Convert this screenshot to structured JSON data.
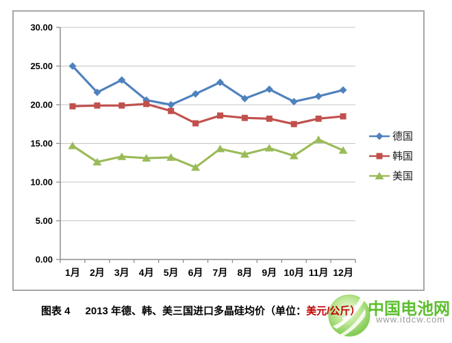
{
  "chart_data": {
    "type": "line",
    "title": "2013年德、韩、美三国进口多晶硅均价",
    "categories": [
      "1月",
      "2月",
      "3月",
      "4月",
      "5月",
      "6月",
      "7月",
      "8月",
      "9月",
      "10月",
      "11月",
      "12月"
    ],
    "series": [
      {
        "name": "德国",
        "marker": "diamond",
        "color": "#4F81BD",
        "values": [
          25.0,
          21.6,
          23.2,
          20.6,
          20.0,
          21.4,
          22.9,
          20.8,
          22.0,
          20.4,
          21.1,
          21.9
        ]
      },
      {
        "name": "韩国",
        "marker": "square",
        "color": "#C0504D",
        "values": [
          19.8,
          19.9,
          19.9,
          20.1,
          19.2,
          17.6,
          18.6,
          18.3,
          18.2,
          17.5,
          18.2,
          18.5
        ]
      },
      {
        "name": "美国",
        "marker": "triangle",
        "color": "#9BBB59",
        "values": [
          14.7,
          12.6,
          13.3,
          13.1,
          13.2,
          11.9,
          14.3,
          13.6,
          14.4,
          13.4,
          15.5,
          14.1
        ]
      }
    ],
    "xlabel": "",
    "ylabel": "",
    "ylim": [
      0,
      30
    ],
    "ytick_labels": [
      "0.00",
      "5.00",
      "10.00",
      "15.00",
      "20.00",
      "25.00",
      "30.00"
    ],
    "grid": true,
    "legend_position": "right",
    "gridline_color": "#C3C3C3",
    "axis_color": "#8C8C8C"
  },
  "caption": {
    "fig_label": "图表 4",
    "text": "2013 年德、韩、美三国进口多晶硅均价（单位：",
    "unit": "美元/公斤）",
    "unit_color": "#C00000"
  },
  "watermark": {
    "brand": "中国电池网",
    "url": "www.itdcw.com",
    "brand_color": "#5BBE2D",
    "url_color": "#9A9A9A"
  }
}
